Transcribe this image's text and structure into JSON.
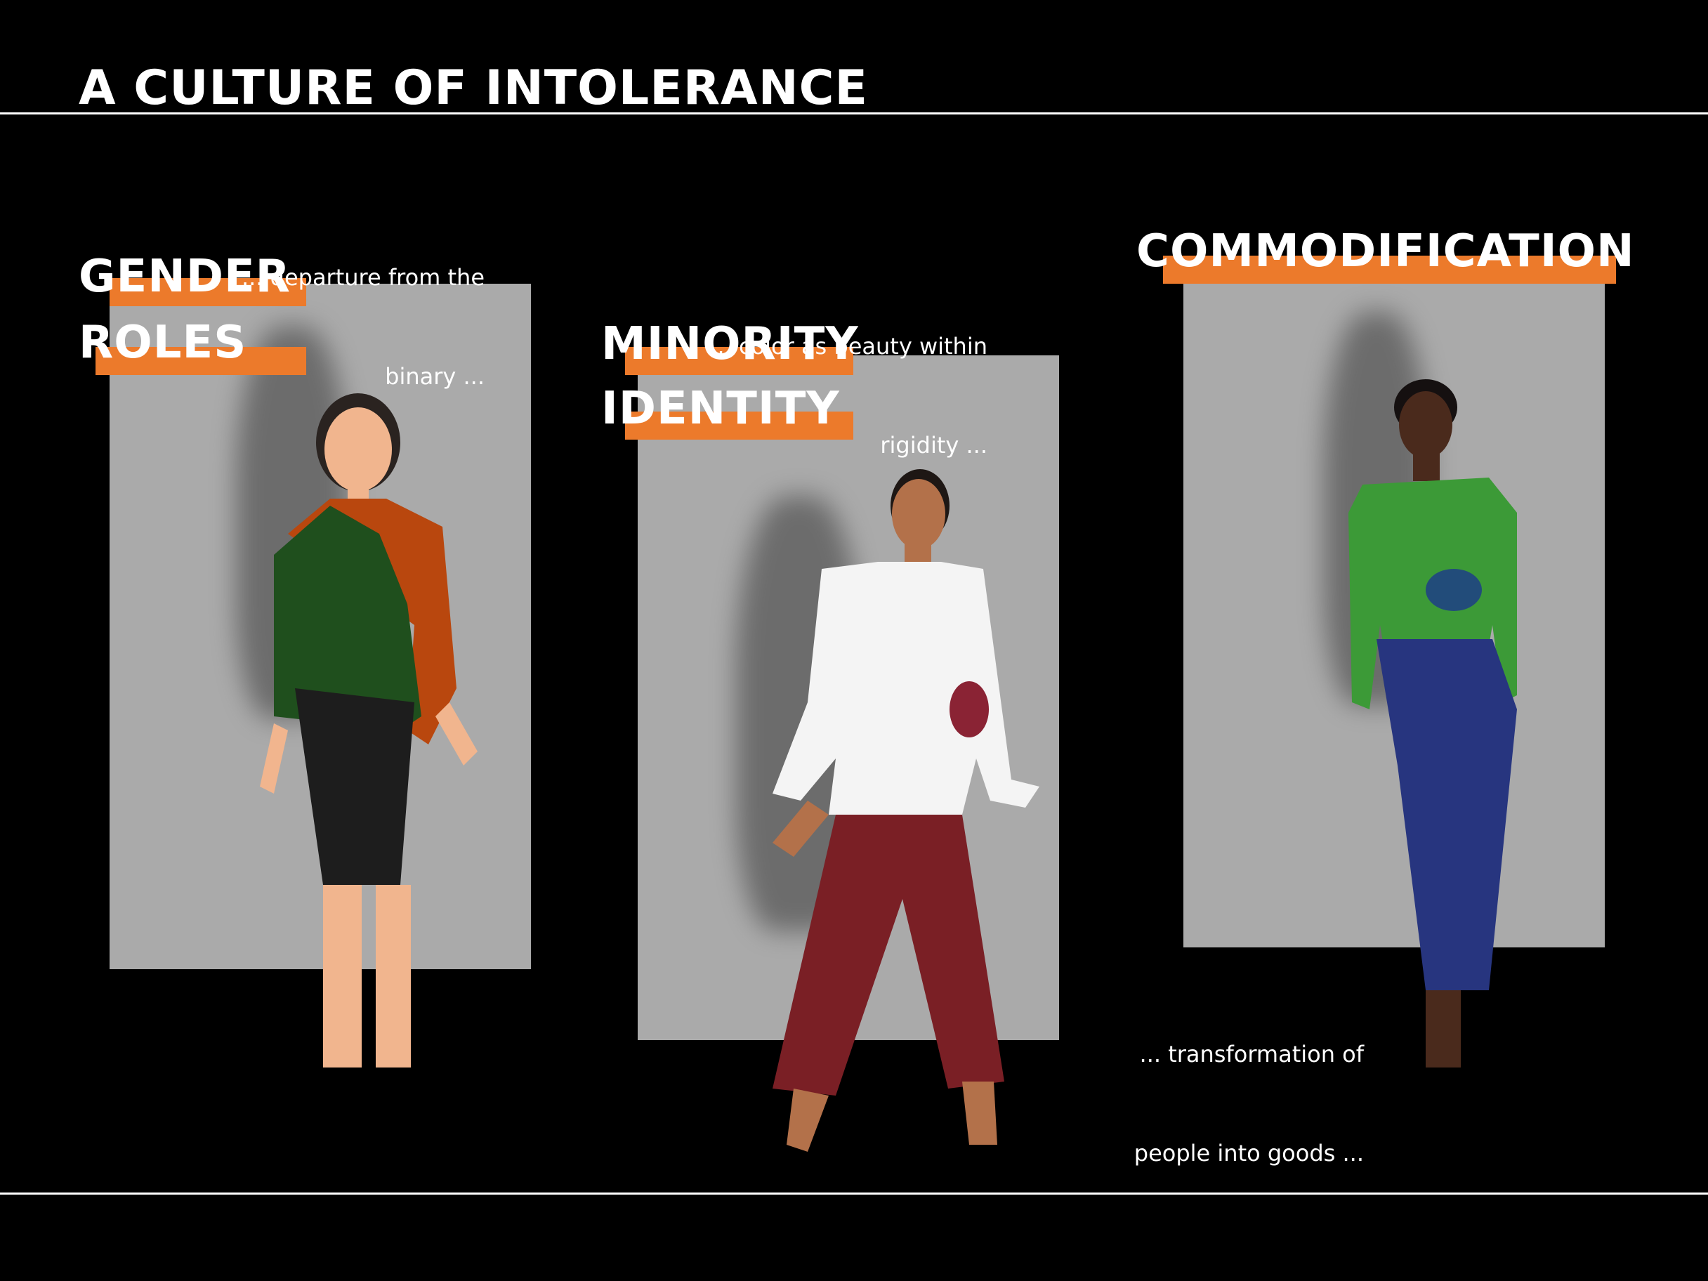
{
  "title": "A CULTURE OF INTOLERANCE",
  "colors": {
    "background": "#000000",
    "accent": "#ec7a2b",
    "panel": "#aaaaaa",
    "text": "#ffffff"
  },
  "sections": [
    {
      "heading_line1": "GENDER",
      "heading_line2": "ROLES",
      "note_line1": "... departure from the",
      "note_line2": "binary ..."
    },
    {
      "heading_line1": "MINORITY",
      "heading_line2": "IDENTITY",
      "note_line1": "... color as beauty within",
      "note_line2": "rigidity ..."
    },
    {
      "heading_line1": "COMMODIFICATION",
      "note_line1": "... transformation of",
      "note_line2": "people into goods ..."
    }
  ]
}
